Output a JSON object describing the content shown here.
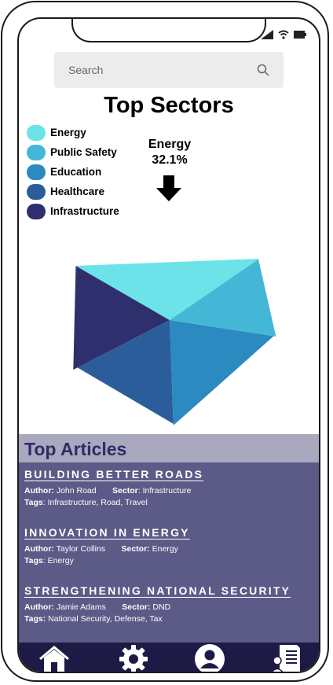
{
  "search": {
    "placeholder": "Search"
  },
  "title": "Top Sectors",
  "callout": {
    "label": "Energy",
    "value": "32.1%"
  },
  "colors": {
    "energy": "#6be3e8",
    "public_safety": "#44b7d6",
    "education": "#2b8ac0",
    "healthcare": "#2b5d9a",
    "infrastructure": "#2f2f6e",
    "articles_bg": "#5c5a87",
    "nav_bg": "#1d1b45"
  },
  "chart_data": {
    "type": "pie",
    "title": "Top Sectors",
    "legend": "top-left",
    "categories": [
      "Energy",
      "Public Safety",
      "Education",
      "Healthcare",
      "Infrastructure"
    ],
    "values": [
      32.1,
      12.0,
      22.0,
      18.0,
      15.9
    ],
    "annotations": [
      {
        "label": "Energy",
        "value": "32.1%"
      }
    ]
  },
  "articles": {
    "header": "Top Articles",
    "items": [
      {
        "title": "BUILDING BETTER ROADS",
        "author_label": "Author:",
        "author": "John Road",
        "sector_label": "Sector",
        "sector": "Infrastructure",
        "tags_label": "Tags",
        "tags": "Infrastructure, Road, Travel"
      },
      {
        "title": "INNOVATION IN ENERGY",
        "author_label": "Author:",
        "author": "Taylor Collins",
        "sector_label": "Sector:",
        "sector": "Energy",
        "tags_label": "Tags",
        "tags": "Energy"
      },
      {
        "title": "STRENGTHENING NATIONAL SECURITY",
        "author_label": "Author:",
        "author": "Jamie Adams",
        "sector_label": "Sector:",
        "sector": "DND",
        "tags_label": "Tags:",
        "tags": "National Security, Defense, Tax"
      }
    ]
  },
  "nav": {
    "icons": [
      "home-icon",
      "gear-icon",
      "profile-icon",
      "document-icon"
    ]
  }
}
